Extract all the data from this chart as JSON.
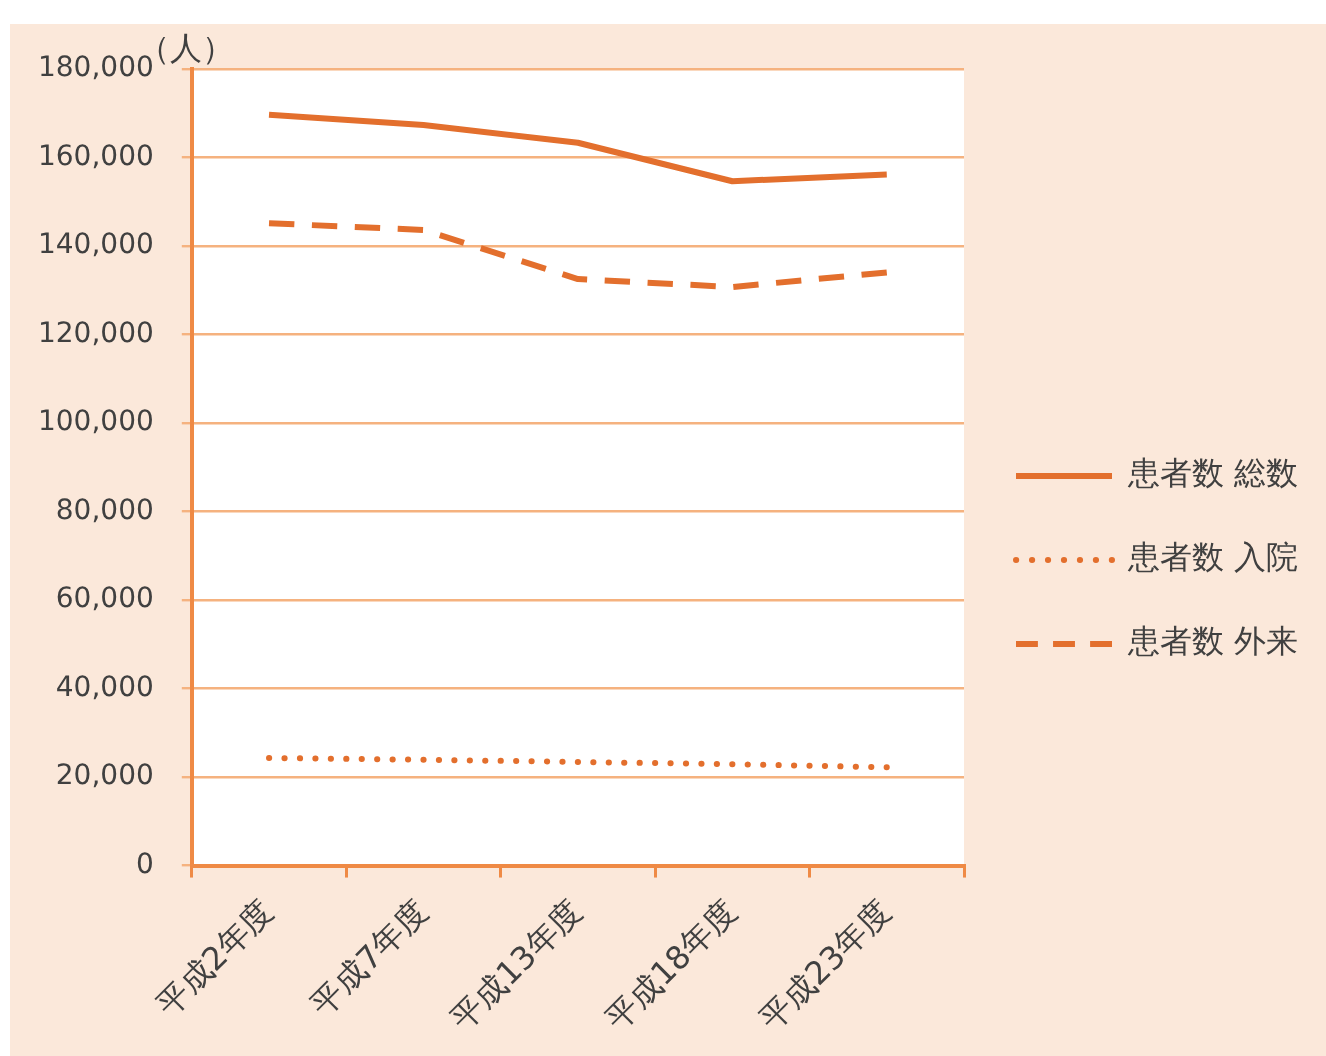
{
  "chart_data": {
    "type": "line",
    "ylabel": "（人）",
    "categories": [
      "平成2年度",
      "平成7年度",
      "平成13年度",
      "平成18年度",
      "平成23年度"
    ],
    "series": [
      {
        "name": "患者数 総数",
        "color": "#e36f2d",
        "line_style": "solid",
        "values": [
          169600,
          167300,
          163300,
          154600,
          156100
        ]
      },
      {
        "name": "患者数 入院",
        "color": "#e36f2d",
        "line_style": "dotted",
        "values": [
          24300,
          23900,
          23400,
          22900,
          22200
        ]
      },
      {
        "name": "患者数 外来",
        "color": "#e36f2d",
        "line_style": "dashed",
        "values": [
          145100,
          143600,
          132500,
          130700,
          134000
        ]
      }
    ],
    "ylim": [
      0,
      180000
    ],
    "yticks": [
      {
        "value": 0,
        "label": "0"
      },
      {
        "value": 20000,
        "label": "20,000"
      },
      {
        "value": 40000,
        "label": "40,000"
      },
      {
        "value": 60000,
        "label": "60,000"
      },
      {
        "value": 80000,
        "label": "80,000"
      },
      {
        "value": 100000,
        "label": "100,000"
      },
      {
        "value": 120000,
        "label": "120,000"
      },
      {
        "value": 140000,
        "label": "140,000"
      },
      {
        "value": 160000,
        "label": "160,000"
      },
      {
        "value": 180000,
        "label": "180,000"
      }
    ],
    "grid": "y",
    "legend": "right",
    "marker": "none"
  }
}
